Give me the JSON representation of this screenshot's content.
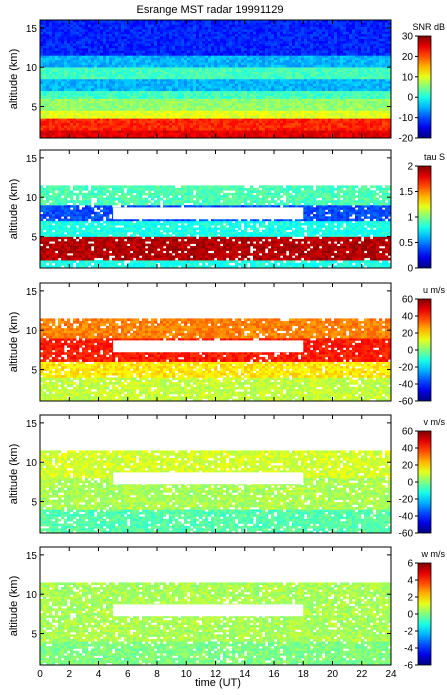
{
  "chart_data": {
    "title": "Esrange MST radar 19991129",
    "xlabel": "time (UT)",
    "xlim": [
      0,
      24
    ],
    "xticks": [
      "0",
      "2",
      "4",
      "6",
      "8",
      "10",
      "12",
      "14",
      "16",
      "18",
      "20",
      "22",
      "24"
    ],
    "ylabel": "altitude (km)",
    "ylim": [
      1,
      16
    ],
    "yticks": [
      "5",
      "10",
      "15"
    ],
    "panels": [
      {
        "type": "heatmap",
        "colorbar_label": "SNR dB",
        "clim": [
          -20,
          30
        ],
        "cticks": [
          "30",
          "20",
          "10",
          "0",
          "-10",
          "-20"
        ],
        "layers": [
          {
            "alt": [
              1,
              2
            ],
            "value": 25
          },
          {
            "alt": [
              2,
              3.5
            ],
            "value": 22
          },
          {
            "alt": [
              3.5,
              4.5
            ],
            "value": 10
          },
          {
            "alt": [
              4.5,
              6
            ],
            "value": 6
          },
          {
            "alt": [
              6,
              7
            ],
            "value": 2
          },
          {
            "alt": [
              7,
              8.5
            ],
            "value": -5
          },
          {
            "alt": [
              8.5,
              10
            ],
            "value": 2
          },
          {
            "alt": [
              10,
              11.5
            ],
            "value": -5
          },
          {
            "alt": [
              11.5,
              16
            ],
            "value": -12
          }
        ]
      },
      {
        "type": "heatmap",
        "colorbar_label": "tau S",
        "clim": [
          0,
          2
        ],
        "cticks": [
          "2",
          "1.5",
          "1",
          "0.5",
          "0"
        ],
        "layers": [
          {
            "alt": [
              1,
              2
            ],
            "value": 0.8
          },
          {
            "alt": [
              2,
              5
            ],
            "value": 1.9
          },
          {
            "alt": [
              5,
              7
            ],
            "value": 0.8
          },
          {
            "alt": [
              7,
              9
            ],
            "value": 0.4
          },
          {
            "alt": [
              9,
              11.5
            ],
            "value": 0.9
          }
        ]
      },
      {
        "type": "heatmap",
        "colorbar_label": "u m/s",
        "clim": [
          -60,
          60
        ],
        "cticks": [
          "60",
          "40",
          "20",
          "0",
          "-20",
          "-40",
          "-60"
        ],
        "layers": [
          {
            "alt": [
              1,
              4
            ],
            "value": 8
          },
          {
            "alt": [
              4,
              6
            ],
            "value": 18
          },
          {
            "alt": [
              6,
              9
            ],
            "value": 42
          },
          {
            "alt": [
              9,
              11.5
            ],
            "value": 30
          }
        ]
      },
      {
        "type": "heatmap",
        "colorbar_label": "v m/s",
        "clim": [
          -60,
          60
        ],
        "cticks": [
          "60",
          "40",
          "20",
          "0",
          "-20",
          "-40",
          "-60"
        ],
        "layers": [
          {
            "alt": [
              1,
              4
            ],
            "value": -5
          },
          {
            "alt": [
              4,
              8
            ],
            "value": 5
          },
          {
            "alt": [
              8,
              11.5
            ],
            "value": 10
          }
        ]
      },
      {
        "type": "heatmap",
        "colorbar_label": "w m/s",
        "clim": [
          -6,
          6
        ],
        "cticks": [
          "6",
          "4",
          "2",
          "0",
          "-2",
          "-4",
          "-6"
        ],
        "layers": [
          {
            "alt": [
              1,
              4
            ],
            "value": 0
          },
          {
            "alt": [
              4,
              11.5
            ],
            "value": 0.5
          }
        ]
      }
    ]
  }
}
